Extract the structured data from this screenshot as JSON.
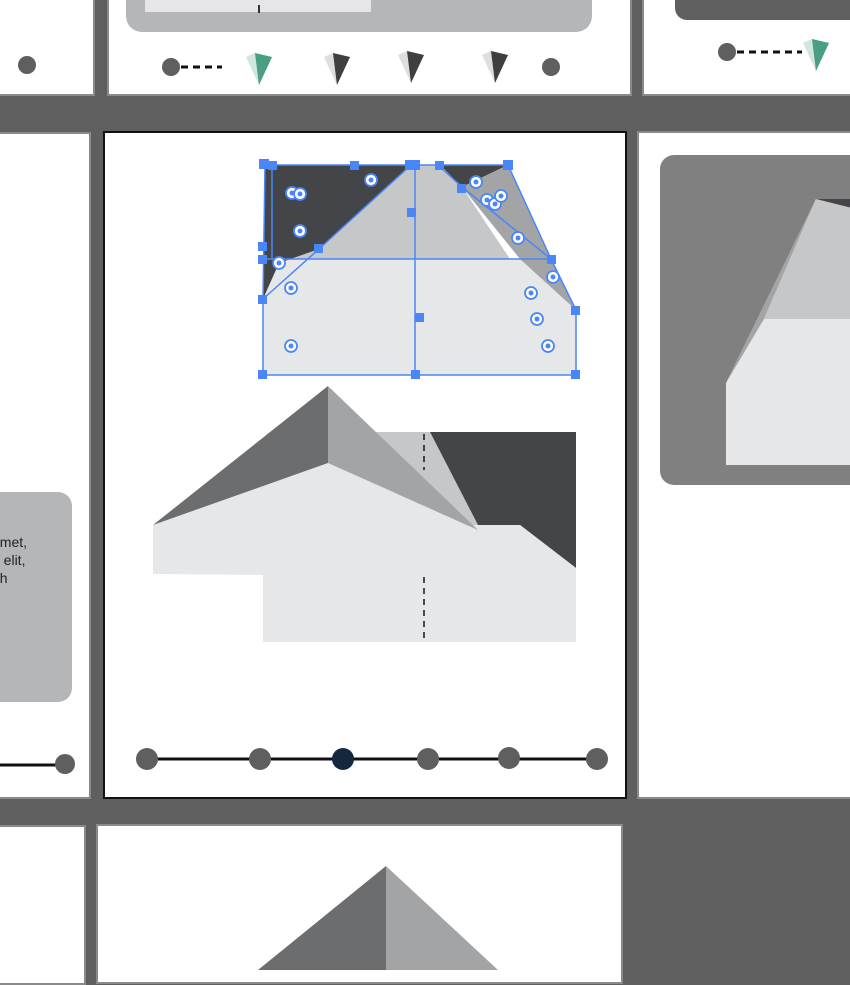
{
  "canvas": {
    "background_color": "#5f5f5f",
    "card_color": "#ffffff",
    "active_frame_border_color": "#111111",
    "selection_color": "#4a86f7"
  },
  "left_frame": {
    "text_lines": [
      "amet,",
      "g elit,",
      "oh"
    ]
  },
  "top_center_frame": {
    "icons": [
      "diamond-icon-teal",
      "diamond-icon-gray",
      "diamond-icon-gray",
      "diamond-icon-gray"
    ],
    "accent_color": "#4a9e82"
  },
  "top_right_frame": {
    "icons": [
      "diamond-icon-teal"
    ]
  },
  "active_frame": {
    "illustration": "house-vector-selected",
    "timeline": {
      "total_steps": 6,
      "current_step": 3,
      "active_color": "#12283d",
      "inactive_color": "#5f5f5f"
    }
  },
  "right_frame": {
    "illustration": "house-roof-preview"
  },
  "bottom_center_frame": {
    "illustration": "roof-peak-preview"
  }
}
